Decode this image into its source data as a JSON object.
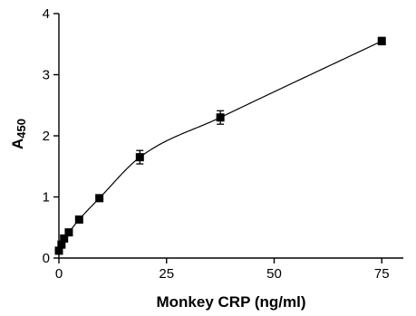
{
  "chart_data": {
    "type": "scatter",
    "title": "",
    "xlabel": "Monkey CRP (ng/ml)",
    "ylabel": "A",
    "ylabel_subscript": "450",
    "xlim": [
      0,
      80
    ],
    "ylim": [
      0,
      4
    ],
    "xticks": [
      "0",
      "25",
      "50",
      "75"
    ],
    "yticks": [
      "0",
      "1",
      "2",
      "3",
      "4"
    ],
    "grid": false,
    "legend": "none",
    "marker": "square",
    "fit_curve": true,
    "series": [
      {
        "x": [
          0,
          0.6,
          1.2,
          2.3,
          4.7,
          9.4,
          18.8,
          37.5,
          75
        ],
        "y": [
          0.12,
          0.22,
          0.32,
          0.42,
          0.63,
          0.98,
          1.65,
          2.3,
          3.55
        ],
        "error": [
          0.03,
          0.03,
          0.03,
          0.04,
          0.04,
          0.04,
          0.11,
          0.11,
          0.06
        ]
      }
    ]
  }
}
